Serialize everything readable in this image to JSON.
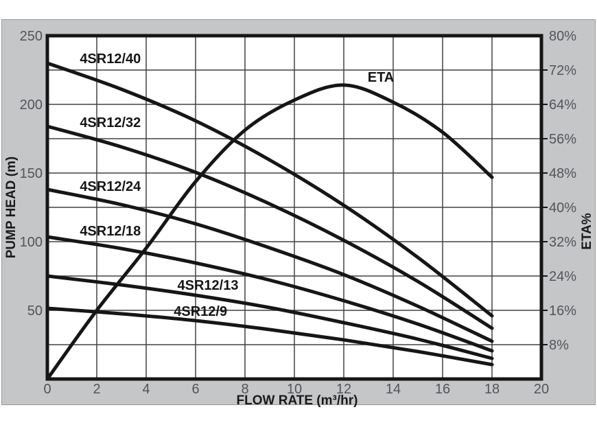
{
  "figure": {
    "colors": {
      "page_bg": "#ffffff",
      "panel_bg": "#c5c6c8",
      "panel_border": "#9a9a9a",
      "plot_bg": "#ffffff",
      "plot_border": "#161616",
      "grid": "#3f4042",
      "curve": "#161616",
      "tick_label": "#53545a",
      "axis_title": "#1a1a1a"
    }
  },
  "chart_data": {
    "type": "line",
    "title": "",
    "xlabel": "FLOW RATE (m³/hr)",
    "ylabel_left": "PUMP HEAD (m)",
    "ylabel_right": "ETA%",
    "x_range": [
      0,
      20
    ],
    "x_ticks": [
      0,
      2,
      4,
      6,
      8,
      10,
      12,
      14,
      16,
      18,
      20
    ],
    "y_left_range": [
      0,
      250
    ],
    "y_left_ticks": [
      250,
      200,
      150,
      100,
      50
    ],
    "y_right_range": [
      0,
      80
    ],
    "y_right_ticks": [
      80,
      72,
      64,
      56,
      48,
      40,
      32,
      24,
      16,
      8
    ],
    "y_right_tick_suffix": "%",
    "grid": {
      "on": true,
      "x_step": 2,
      "y_step_head_m": 25
    },
    "legend_position": "inline-labels",
    "pump_series": [
      {
        "name": "4SR12/40",
        "q": [
          0,
          3,
          6,
          9,
          12,
          15,
          18
        ],
        "head": [
          230,
          211,
          188,
          159.5,
          126.5,
          88.5,
          46
        ],
        "label_pos": {
          "q": 2.55,
          "head": 233.5
        }
      },
      {
        "name": "4SR12/32",
        "q": [
          0,
          3,
          6,
          9,
          12,
          15,
          18
        ],
        "head": [
          184,
          169,
          150.5,
          127.5,
          101,
          71,
          37
        ],
        "label_pos": {
          "q": 2.55,
          "head": 187
        }
      },
      {
        "name": "4SR12/24",
        "q": [
          0,
          3,
          6,
          9,
          12,
          15,
          18
        ],
        "head": [
          138,
          127,
          113,
          95.5,
          76,
          53,
          27.5
        ],
        "label_pos": {
          "q": 2.55,
          "head": 140.5
        }
      },
      {
        "name": "4SR12/18",
        "q": [
          0,
          3,
          6,
          9,
          12,
          15,
          18
        ],
        "head": [
          103.5,
          95,
          84.5,
          72,
          57,
          40,
          20.5
        ],
        "label_pos": {
          "q": 2.55,
          "head": 108
        }
      },
      {
        "name": "4SR12/13",
        "q": [
          0,
          3,
          6,
          9,
          12,
          15,
          18
        ],
        "head": [
          75,
          68.5,
          61,
          52,
          41,
          29,
          15
        ],
        "label_pos": {
          "q": 6.5,
          "head": 68.5
        }
      },
      {
        "name": "4SR12/9",
        "q": [
          0,
          3,
          6,
          9,
          12,
          15,
          18
        ],
        "head": [
          51.5,
          47.5,
          42.5,
          36,
          28.5,
          20,
          10.5
        ],
        "label_pos": {
          "q": 6.2,
          "head": 49.5
        }
      }
    ],
    "eta_series": {
      "name": "ETA",
      "q": [
        0,
        2,
        4,
        6,
        8,
        10,
        12,
        14,
        16,
        18
      ],
      "eta": [
        0,
        16,
        30.5,
        46,
        58,
        65,
        68.5,
        64.5,
        57.5,
        47
      ],
      "label_pos": {
        "q": 13.5,
        "eta": 70.4
      }
    }
  }
}
